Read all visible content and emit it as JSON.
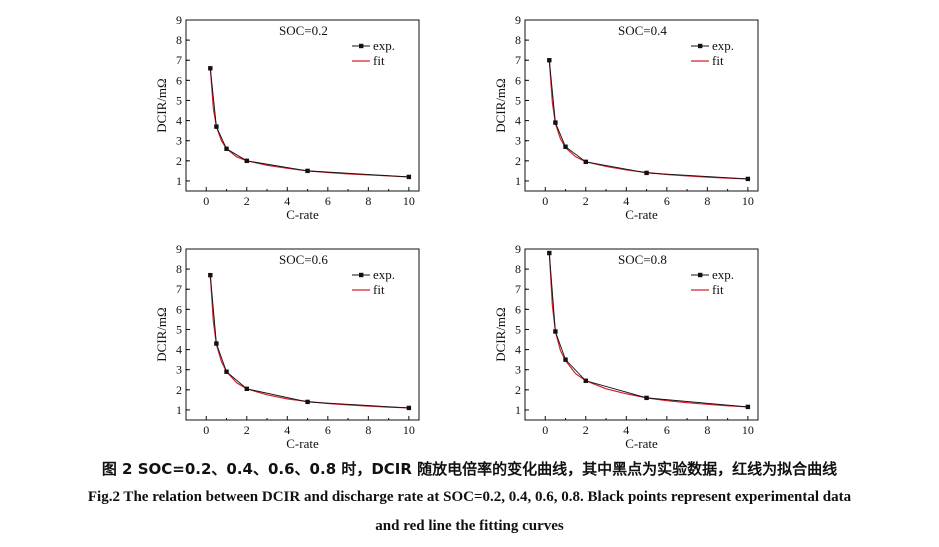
{
  "chart_data": [
    {
      "type": "line",
      "title": "SOC=0.2",
      "xlabel": "C-rate",
      "ylabel": "DCIR/mΩ",
      "xlim": [
        -1,
        10.5
      ],
      "ylim": [
        0.5,
        9
      ],
      "xticks": [
        0,
        2,
        4,
        6,
        8,
        10
      ],
      "yticks": [
        1,
        2,
        3,
        4,
        5,
        6,
        7,
        8,
        9
      ],
      "grid": false,
      "legend": "top-right",
      "series": [
        {
          "name": "exp.",
          "color": "#111111",
          "marker": "square",
          "x": [
            0.2,
            0.5,
            1,
            2,
            5,
            10
          ],
          "y": [
            6.6,
            3.7,
            2.6,
            2.0,
            1.5,
            1.2
          ]
        },
        {
          "name": "fit",
          "color": "#d0202a",
          "marker": "none",
          "x": [
            0.2,
            0.35,
            0.5,
            0.75,
            1,
            1.5,
            2,
            3,
            4,
            5,
            6,
            7,
            8,
            9,
            10
          ],
          "y": [
            6.6,
            4.6,
            3.7,
            3.0,
            2.6,
            2.2,
            2.0,
            1.78,
            1.63,
            1.5,
            1.42,
            1.35,
            1.3,
            1.25,
            1.2
          ]
        }
      ]
    },
    {
      "type": "line",
      "title": "SOC=0.4",
      "xlabel": "C-rate",
      "ylabel": "DCIR/mΩ",
      "xlim": [
        -1,
        10.5
      ],
      "ylim": [
        0.5,
        9
      ],
      "xticks": [
        0,
        2,
        4,
        6,
        8,
        10
      ],
      "yticks": [
        1,
        2,
        3,
        4,
        5,
        6,
        7,
        8,
        9
      ],
      "grid": false,
      "legend": "top-right",
      "series": [
        {
          "name": "exp.",
          "color": "#111111",
          "marker": "square",
          "x": [
            0.2,
            0.5,
            1,
            2,
            5,
            10
          ],
          "y": [
            7.0,
            3.9,
            2.7,
            1.95,
            1.4,
            1.1
          ]
        },
        {
          "name": "fit",
          "color": "#d0202a",
          "marker": "none",
          "x": [
            0.2,
            0.35,
            0.5,
            0.75,
            1,
            1.5,
            2,
            3,
            4,
            5,
            6,
            7,
            8,
            9,
            10
          ],
          "y": [
            7.0,
            4.9,
            3.85,
            3.1,
            2.65,
            2.2,
            1.95,
            1.72,
            1.55,
            1.42,
            1.32,
            1.25,
            1.19,
            1.14,
            1.1
          ]
        }
      ]
    },
    {
      "type": "line",
      "title": "SOC=0.6",
      "xlabel": "C-rate",
      "ylabel": "DCIR/mΩ",
      "xlim": [
        -1,
        10.5
      ],
      "ylim": [
        0.5,
        9
      ],
      "xticks": [
        0,
        2,
        4,
        6,
        8,
        10
      ],
      "yticks": [
        1,
        2,
        3,
        4,
        5,
        6,
        7,
        8,
        9
      ],
      "grid": false,
      "legend": "top-right",
      "series": [
        {
          "name": "exp.",
          "color": "#111111",
          "marker": "square",
          "x": [
            0.2,
            0.5,
            1,
            2,
            5,
            10
          ],
          "y": [
            7.7,
            4.3,
            2.9,
            2.05,
            1.4,
            1.1
          ]
        },
        {
          "name": "fit",
          "color": "#d0202a",
          "marker": "none",
          "x": [
            0.2,
            0.35,
            0.5,
            0.75,
            1,
            1.5,
            2,
            3,
            4,
            5,
            6,
            7,
            8,
            9,
            10
          ],
          "y": [
            7.7,
            5.4,
            4.25,
            3.4,
            2.9,
            2.35,
            2.05,
            1.75,
            1.55,
            1.42,
            1.32,
            1.25,
            1.19,
            1.14,
            1.1
          ]
        }
      ]
    },
    {
      "type": "line",
      "title": "SOC=0.8",
      "xlabel": "C-rate",
      "ylabel": "DCIR/mΩ",
      "xlim": [
        -1,
        10.5
      ],
      "ylim": [
        0.5,
        9
      ],
      "xticks": [
        0,
        2,
        4,
        6,
        8,
        10
      ],
      "yticks": [
        1,
        2,
        3,
        4,
        5,
        6,
        7,
        8,
        9
      ],
      "grid": false,
      "legend": "top-right",
      "series": [
        {
          "name": "exp.",
          "color": "#111111",
          "marker": "square",
          "x": [
            0.2,
            0.5,
            1,
            2,
            5,
            10
          ],
          "y": [
            8.8,
            4.9,
            3.5,
            2.45,
            1.6,
            1.15
          ]
        },
        {
          "name": "fit",
          "color": "#d0202a",
          "marker": "none",
          "x": [
            0.2,
            0.35,
            0.5,
            0.75,
            1,
            1.5,
            2,
            3,
            4,
            5,
            6,
            7,
            8,
            9,
            10
          ],
          "y": [
            8.8,
            6.2,
            4.9,
            3.95,
            3.45,
            2.8,
            2.45,
            2.05,
            1.8,
            1.6,
            1.46,
            1.36,
            1.28,
            1.21,
            1.15
          ]
        }
      ]
    }
  ],
  "captions": {
    "chinese": "图 2    SOC=0.2、0.4、0.6、0.8 时，DCIR 随放电倍率的变化曲线，其中黑点为实验数据，红线为拟合曲线",
    "english_line1": "Fig.2    The relation between DCIR and discharge rate at SOC=0.2, 0.4, 0.6, 0.8. Black points represent experimental data",
    "english_line2": "and red line the fitting curves"
  }
}
